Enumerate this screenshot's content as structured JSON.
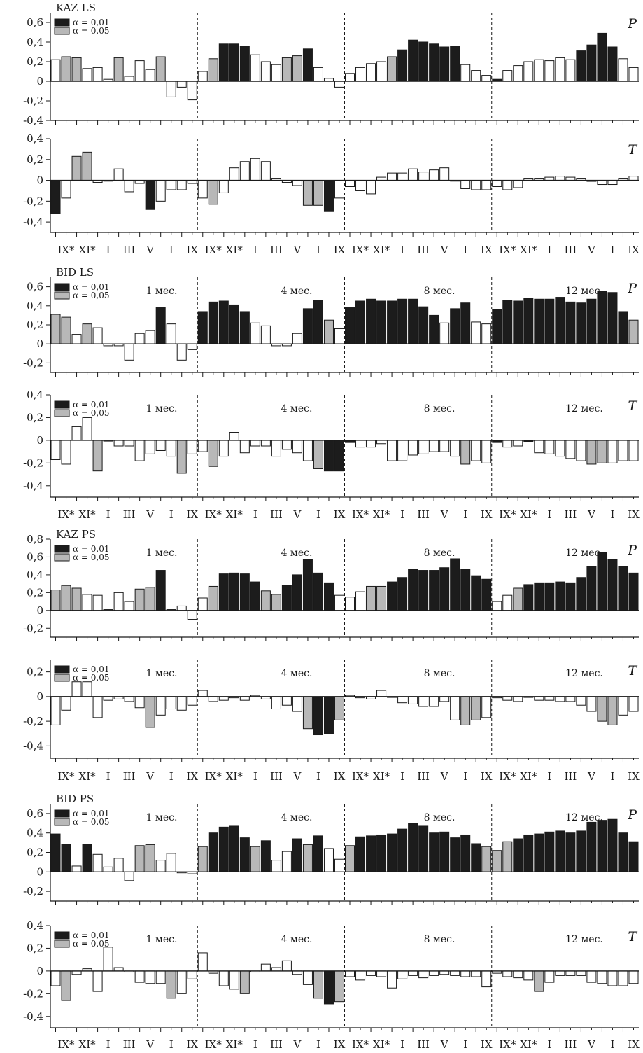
{
  "colors": {
    "p01": "#1c1c1c",
    "p05": "#b8b8b8",
    "ns": "#ffffff",
    "stroke": "#1a1a1a"
  },
  "legend": [
    "α = 0,01",
    "α = 0,05"
  ],
  "groups": [
    "1 мес.",
    "4 мес.",
    "8 мес.",
    "12 мес."
  ],
  "x_tick_labels": [
    "IX*",
    "XI*",
    "I",
    "III",
    "V",
    "I",
    "IX",
    "IX*",
    "XI*",
    "I",
    "III",
    "V",
    "I",
    "IX",
    "IX*",
    "XI*",
    "I",
    "III",
    "V",
    "I",
    "IX",
    "IX*",
    "XI*",
    "I",
    "III",
    "V",
    "I",
    "IX"
  ],
  "chart_data": [
    {
      "type": "bar",
      "title": "KAZ LS",
      "variable": "P",
      "ylim": [
        -0.4,
        0.7
      ],
      "yticks": [
        -0.4,
        -0.2,
        0,
        0.2,
        0.4,
        0.6
      ],
      "ytick_labels": [
        "-0,4",
        "-0,2",
        "0",
        "0,2",
        "0,4",
        "0,6"
      ],
      "show_legend": true,
      "show_groups": false,
      "values": [
        0.22,
        0.25,
        0.24,
        0.13,
        0.14,
        0.02,
        0.24,
        0.05,
        0.21,
        0.12,
        0.25,
        -0.16,
        -0.06,
        -0.19,
        0.1,
        0.23,
        0.38,
        0.38,
        0.36,
        0.27,
        0.2,
        0.17,
        0.24,
        0.26,
        0.33,
        0.14,
        0.03,
        -0.06,
        0.08,
        0.14,
        0.18,
        0.2,
        0.25,
        0.32,
        0.42,
        0.4,
        0.38,
        0.35,
        0.36,
        0.17,
        0.11,
        0.06,
        0.02,
        0.11,
        0.16,
        0.2,
        0.22,
        0.21,
        0.24,
        0.22,
        0.31,
        0.37,
        0.49,
        0.35,
        0.23,
        0.14
      ],
      "significance": [
        "ns",
        "p05",
        "p05",
        "ns",
        "ns",
        "ns",
        "p05",
        "ns",
        "ns",
        "ns",
        "p05",
        "ns",
        "ns",
        "ns",
        "ns",
        "p05",
        "p01",
        "p01",
        "p01",
        "ns",
        "ns",
        "ns",
        "p05",
        "p05",
        "p01",
        "ns",
        "ns",
        "ns",
        "ns",
        "ns",
        "ns",
        "ns",
        "p05",
        "p01",
        "p01",
        "p01",
        "p01",
        "p01",
        "p01",
        "ns",
        "ns",
        "ns",
        "p01",
        "ns",
        "ns",
        "ns",
        "ns",
        "ns",
        "ns",
        "ns",
        "p01",
        "p01",
        "p01",
        "p01",
        "ns",
        "ns"
      ]
    },
    {
      "type": "bar",
      "title": "",
      "variable": "T",
      "ylim": [
        -0.5,
        0.4
      ],
      "yticks": [
        -0.4,
        -0.2,
        0,
        0.2,
        0.4
      ],
      "ytick_labels": [
        "-0,4",
        "-0,2",
        "0",
        "0,2",
        "0,4"
      ],
      "show_legend": false,
      "show_groups": false,
      "values": [
        -0.32,
        -0.17,
        0.23,
        0.27,
        -0.02,
        0.0,
        0.11,
        -0.11,
        -0.03,
        -0.28,
        -0.2,
        -0.09,
        -0.09,
        -0.03,
        -0.17,
        -0.23,
        -0.12,
        0.12,
        0.18,
        0.21,
        0.18,
        0.02,
        -0.02,
        -0.05,
        -0.24,
        -0.24,
        -0.3,
        -0.17,
        -0.06,
        -0.1,
        -0.13,
        0.03,
        0.07,
        0.07,
        0.11,
        0.08,
        0.1,
        0.12,
        0.0,
        -0.08,
        -0.09,
        -0.09,
        -0.06,
        -0.09,
        -0.07,
        0.02,
        0.02,
        0.03,
        0.04,
        0.03,
        0.02,
        -0.01,
        -0.04,
        -0.04,
        0.02,
        0.04
      ],
      "significance": [
        "p01",
        "ns",
        "p05",
        "p05",
        "ns",
        "ns",
        "ns",
        "ns",
        "ns",
        "p01",
        "ns",
        "ns",
        "ns",
        "ns",
        "ns",
        "p05",
        "ns",
        "ns",
        "ns",
        "ns",
        "ns",
        "ns",
        "ns",
        "ns",
        "p05",
        "p05",
        "p01",
        "ns",
        "ns",
        "ns",
        "ns",
        "ns",
        "ns",
        "ns",
        "ns",
        "ns",
        "ns",
        "ns",
        "ns",
        "ns",
        "ns",
        "ns",
        "ns",
        "ns",
        "ns",
        "ns",
        "ns",
        "ns",
        "ns",
        "ns",
        "ns",
        "ns",
        "ns",
        "ns",
        "ns",
        "ns"
      ]
    },
    {
      "type": "bar",
      "title": "BID LS",
      "variable": "P",
      "ylim": [
        -0.3,
        0.7
      ],
      "yticks": [
        -0.2,
        0,
        0.2,
        0.4,
        0.6
      ],
      "ytick_labels": [
        "-0,2",
        "0",
        "0,2",
        "0,4",
        "0,6"
      ],
      "show_legend": true,
      "show_groups": true,
      "values": [
        0.31,
        0.28,
        0.1,
        0.21,
        0.17,
        -0.02,
        -0.02,
        -0.17,
        0.11,
        0.14,
        0.38,
        0.21,
        -0.17,
        -0.06,
        0.34,
        0.44,
        0.45,
        0.41,
        0.34,
        0.22,
        0.19,
        -0.02,
        -0.02,
        0.11,
        0.37,
        0.46,
        0.25,
        0.16,
        0.38,
        0.45,
        0.47,
        0.45,
        0.45,
        0.47,
        0.47,
        0.39,
        0.3,
        0.22,
        0.37,
        0.43,
        0.23,
        0.21,
        0.36,
        0.46,
        0.45,
        0.48,
        0.47,
        0.47,
        0.49,
        0.44,
        0.43,
        0.47,
        0.55,
        0.54,
        0.34,
        0.25
      ],
      "significance": [
        "p05",
        "p05",
        "ns",
        "p05",
        "ns",
        "ns",
        "ns",
        "ns",
        "ns",
        "ns",
        "p01",
        "ns",
        "ns",
        "ns",
        "p01",
        "p01",
        "p01",
        "p01",
        "p01",
        "ns",
        "ns",
        "ns",
        "ns",
        "ns",
        "p01",
        "p01",
        "p05",
        "ns",
        "p01",
        "p01",
        "p01",
        "p01",
        "p01",
        "p01",
        "p01",
        "p01",
        "p01",
        "ns",
        "p01",
        "p01",
        "ns",
        "ns",
        "p01",
        "p01",
        "p01",
        "p01",
        "p01",
        "p01",
        "p01",
        "p01",
        "p01",
        "p01",
        "p01",
        "p01",
        "p01",
        "p05"
      ]
    },
    {
      "type": "bar",
      "title": "",
      "variable": "T",
      "ylim": [
        -0.5,
        0.4
      ],
      "yticks": [
        -0.4,
        -0.2,
        0,
        0.2,
        0.4
      ],
      "ytick_labels": [
        "-0,4",
        "-0,2",
        "0",
        "0,2",
        "0,4"
      ],
      "show_legend": true,
      "show_groups": true,
      "values": [
        -0.17,
        -0.21,
        0.12,
        0.2,
        -0.27,
        0.0,
        -0.05,
        -0.05,
        -0.18,
        -0.12,
        -0.09,
        -0.14,
        -0.29,
        -0.12,
        -0.1,
        -0.23,
        -0.14,
        0.07,
        -0.11,
        -0.05,
        -0.05,
        -0.14,
        -0.08,
        -0.11,
        -0.18,
        -0.25,
        -0.27,
        -0.27,
        -0.02,
        -0.06,
        -0.06,
        -0.03,
        -0.18,
        -0.18,
        -0.13,
        -0.12,
        -0.1,
        -0.1,
        -0.14,
        -0.21,
        -0.18,
        -0.2,
        -0.02,
        -0.06,
        -0.05,
        -0.01,
        -0.11,
        -0.12,
        -0.14,
        -0.16,
        -0.18,
        -0.21,
        -0.2,
        -0.2,
        -0.18,
        -0.18
      ],
      "significance": [
        "ns",
        "ns",
        "ns",
        "ns",
        "p05",
        "ns",
        "ns",
        "ns",
        "ns",
        "ns",
        "ns",
        "ns",
        "p05",
        "ns",
        "ns",
        "p05",
        "ns",
        "ns",
        "ns",
        "ns",
        "ns",
        "ns",
        "ns",
        "ns",
        "ns",
        "p05",
        "p01",
        "p01",
        "p01",
        "ns",
        "ns",
        "ns",
        "ns",
        "ns",
        "ns",
        "ns",
        "ns",
        "ns",
        "ns",
        "p05",
        "ns",
        "ns",
        "p01",
        "ns",
        "ns",
        "p01",
        "ns",
        "ns",
        "ns",
        "ns",
        "ns",
        "p05",
        "p05",
        "ns",
        "ns",
        "ns"
      ]
    },
    {
      "type": "bar",
      "title": "KAZ PS",
      "variable": "P",
      "ylim": [
        -0.3,
        0.8
      ],
      "yticks": [
        -0.2,
        0,
        0.2,
        0.4,
        0.6,
        0.8
      ],
      "ytick_labels": [
        "-0,2",
        "0",
        "0,2",
        "0,4",
        "0,6",
        "0,8"
      ],
      "show_legend": true,
      "show_groups": true,
      "values": [
        0.23,
        0.28,
        0.25,
        0.18,
        0.17,
        0.01,
        0.2,
        0.1,
        0.24,
        0.26,
        0.45,
        0.01,
        0.05,
        -0.1,
        0.14,
        0.27,
        0.41,
        0.42,
        0.41,
        0.32,
        0.22,
        0.18,
        0.28,
        0.4,
        0.57,
        0.42,
        0.31,
        0.17,
        0.15,
        0.21,
        0.27,
        0.27,
        0.32,
        0.37,
        0.46,
        0.45,
        0.45,
        0.48,
        0.58,
        0.46,
        0.39,
        0.35,
        0.1,
        0.17,
        0.25,
        0.29,
        0.31,
        0.31,
        0.32,
        0.31,
        0.37,
        0.49,
        0.65,
        0.57,
        0.49,
        0.42
      ],
      "significance": [
        "p05",
        "p05",
        "p05",
        "ns",
        "ns",
        "ns",
        "ns",
        "ns",
        "p05",
        "p05",
        "p01",
        "ns",
        "ns",
        "ns",
        "ns",
        "p05",
        "p01",
        "p01",
        "p01",
        "p01",
        "p05",
        "p05",
        "p01",
        "p01",
        "p01",
        "p01",
        "p01",
        "ns",
        "ns",
        "ns",
        "p05",
        "p05",
        "p01",
        "p01",
        "p01",
        "p01",
        "p01",
        "p01",
        "p01",
        "p01",
        "p01",
        "p01",
        "ns",
        "ns",
        "p05",
        "p01",
        "p01",
        "p01",
        "p01",
        "p01",
        "p01",
        "p01",
        "p01",
        "p01",
        "p01",
        "p01"
      ]
    },
    {
      "type": "bar",
      "title": "",
      "variable": "T",
      "ylim": [
        -0.5,
        0.3
      ],
      "yticks": [
        -0.4,
        -0.2,
        0,
        0.2
      ],
      "ytick_labels": [
        "-0,4",
        "-0,2",
        "0",
        "0,2"
      ],
      "show_legend": true,
      "show_groups": true,
      "values": [
        -0.23,
        -0.11,
        0.12,
        0.12,
        -0.17,
        -0.03,
        -0.02,
        -0.04,
        -0.09,
        -0.25,
        -0.15,
        -0.1,
        -0.11,
        -0.07,
        0.05,
        -0.04,
        -0.03,
        -0.01,
        -0.03,
        0.01,
        -0.02,
        -0.1,
        -0.07,
        -0.12,
        -0.26,
        -0.31,
        -0.3,
        -0.19,
        0.01,
        -0.01,
        -0.02,
        0.05,
        0.0,
        -0.05,
        -0.06,
        -0.08,
        -0.08,
        -0.04,
        -0.19,
        -0.23,
        -0.19,
        -0.17,
        -0.01,
        -0.03,
        -0.04,
        0.0,
        -0.03,
        -0.03,
        -0.04,
        -0.04,
        -0.07,
        -0.12,
        -0.2,
        -0.23,
        -0.15,
        -0.12
      ],
      "significance": [
        "ns",
        "ns",
        "ns",
        "ns",
        "ns",
        "ns",
        "ns",
        "ns",
        "ns",
        "p05",
        "ns",
        "ns",
        "ns",
        "ns",
        "ns",
        "ns",
        "ns",
        "ns",
        "ns",
        "ns",
        "ns",
        "ns",
        "ns",
        "ns",
        "p05",
        "p01",
        "p01",
        "p05",
        "ns",
        "ns",
        "ns",
        "ns",
        "ns",
        "ns",
        "ns",
        "ns",
        "ns",
        "ns",
        "ns",
        "p05",
        "p05",
        "ns",
        "ns",
        "ns",
        "ns",
        "ns",
        "ns",
        "ns",
        "ns",
        "ns",
        "ns",
        "ns",
        "p05",
        "p05",
        "ns",
        "ns"
      ]
    },
    {
      "type": "bar",
      "title": "BID PS",
      "variable": "P",
      "ylim": [
        -0.3,
        0.7
      ],
      "yticks": [
        -0.2,
        0,
        0.2,
        0.4,
        0.6
      ],
      "ytick_labels": [
        "-0,2",
        "0",
        "0,2",
        "0,4",
        "0,6"
      ],
      "show_legend": true,
      "show_groups": true,
      "values": [
        0.39,
        0.28,
        0.06,
        0.28,
        0.18,
        0.05,
        0.14,
        -0.09,
        0.27,
        0.28,
        0.12,
        0.19,
        -0.01,
        -0.02,
        0.26,
        0.4,
        0.46,
        0.47,
        0.35,
        0.26,
        0.32,
        0.12,
        0.21,
        0.34,
        0.28,
        0.37,
        0.24,
        0.13,
        0.27,
        0.36,
        0.37,
        0.38,
        0.39,
        0.44,
        0.5,
        0.47,
        0.4,
        0.41,
        0.35,
        0.38,
        0.29,
        0.26,
        0.22,
        0.31,
        0.34,
        0.38,
        0.39,
        0.41,
        0.42,
        0.4,
        0.42,
        0.51,
        0.53,
        0.54,
        0.4,
        0.31
      ],
      "significance": [
        "p01",
        "p01",
        "ns",
        "p01",
        "ns",
        "ns",
        "ns",
        "ns",
        "p05",
        "p05",
        "ns",
        "ns",
        "ns",
        "ns",
        "p05",
        "p01",
        "p01",
        "p01",
        "p01",
        "p05",
        "p01",
        "ns",
        "ns",
        "p01",
        "p05",
        "p01",
        "ns",
        "ns",
        "p05",
        "p01",
        "p01",
        "p01",
        "p01",
        "p01",
        "p01",
        "p01",
        "p01",
        "p01",
        "p01",
        "p01",
        "p01",
        "p05",
        "p05",
        "p05",
        "p01",
        "p01",
        "p01",
        "p01",
        "p01",
        "p01",
        "p01",
        "p01",
        "p01",
        "p01",
        "p01",
        "p01"
      ]
    },
    {
      "type": "bar",
      "title": "",
      "variable": "T",
      "ylim": [
        -0.5,
        0.4
      ],
      "yticks": [
        -0.4,
        -0.2,
        0,
        0.2,
        0.4
      ],
      "ytick_labels": [
        "-0,4",
        "-0,2",
        "0",
        "0,2",
        "0,4"
      ],
      "show_legend": true,
      "show_groups": true,
      "values": [
        -0.13,
        -0.26,
        -0.03,
        0.02,
        -0.18,
        0.21,
        0.03,
        -0.01,
        -0.1,
        -0.11,
        -0.11,
        -0.24,
        -0.2,
        -0.07,
        0.16,
        -0.02,
        -0.13,
        -0.16,
        -0.2,
        -0.01,
        0.06,
        0.03,
        0.09,
        -0.03,
        -0.12,
        -0.24,
        -0.29,
        -0.27,
        -0.05,
        -0.08,
        -0.04,
        -0.05,
        -0.15,
        -0.07,
        -0.04,
        -0.06,
        -0.04,
        -0.03,
        -0.04,
        -0.05,
        -0.05,
        -0.14,
        -0.02,
        -0.05,
        -0.06,
        -0.08,
        -0.18,
        -0.1,
        -0.04,
        -0.04,
        -0.04,
        -0.1,
        -0.11,
        -0.13,
        -0.13,
        -0.11
      ],
      "significance": [
        "ns",
        "p05",
        "ns",
        "ns",
        "ns",
        "ns",
        "ns",
        "ns",
        "ns",
        "ns",
        "ns",
        "p05",
        "ns",
        "ns",
        "ns",
        "ns",
        "ns",
        "ns",
        "p05",
        "ns",
        "ns",
        "ns",
        "ns",
        "ns",
        "ns",
        "p05",
        "p01",
        "p05",
        "ns",
        "ns",
        "ns",
        "ns",
        "ns",
        "ns",
        "ns",
        "ns",
        "ns",
        "ns",
        "ns",
        "ns",
        "ns",
        "ns",
        "ns",
        "ns",
        "ns",
        "ns",
        "p05",
        "ns",
        "ns",
        "ns",
        "ns",
        "ns",
        "ns",
        "ns",
        "ns",
        "ns"
      ]
    }
  ]
}
